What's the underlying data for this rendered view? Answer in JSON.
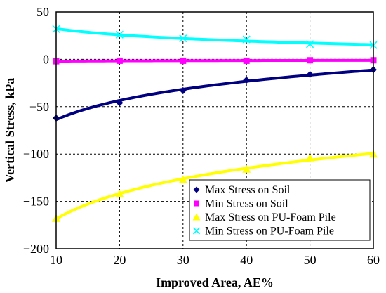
{
  "chart_data": {
    "type": "scatter",
    "xlabel": "Improved Area, AE%",
    "ylabel": "Vertical Stress, kPa",
    "xlim": [
      10,
      60
    ],
    "ylim": [
      -200,
      50
    ],
    "xticks": [
      10,
      20,
      30,
      40,
      50,
      60
    ],
    "yticks": [
      50,
      0,
      -50,
      -100,
      -150,
      -200
    ],
    "ytick_labels": [
      "50",
      "0",
      "−50",
      "−100",
      "−150",
      "−200"
    ],
    "grid": true,
    "legend_position": "bottom-right",
    "trendlines": true,
    "series": [
      {
        "name": "Max Stress on Soil",
        "marker": "diamond",
        "color": "#000080",
        "x": [
          10,
          20,
          30,
          40,
          50,
          60
        ],
        "y": [
          -62,
          -46,
          -33,
          -22,
          -16,
          -11
        ]
      },
      {
        "name": "Min Stress on Soil",
        "marker": "square",
        "color": "#FF00FF",
        "x": [
          10,
          20,
          30,
          40,
          50,
          60
        ],
        "y": [
          -2,
          -1.5,
          -1.5,
          -1.5,
          -1,
          -1
        ]
      },
      {
        "name": "Max Stress on PU-Foam Pile",
        "marker": "triangle",
        "color": "#FFFF00",
        "x": [
          10,
          20,
          30,
          40,
          50,
          60
        ],
        "y": [
          -168,
          -142,
          -127,
          -116,
          -104,
          -100
        ]
      },
      {
        "name": "Min Stress on PU-Foam Pile",
        "marker": "x",
        "color": "#00FFFF",
        "x": [
          10,
          20,
          30,
          40,
          50,
          60
        ],
        "y": [
          32,
          26,
          22,
          21,
          16,
          15
        ]
      }
    ]
  }
}
